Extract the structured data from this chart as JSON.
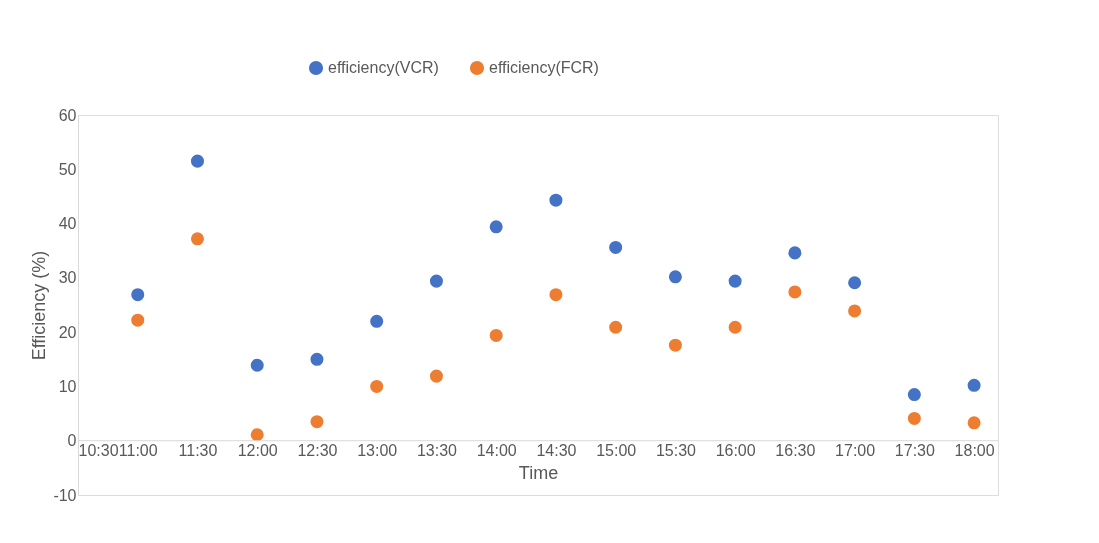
{
  "chart_data": {
    "type": "scatter",
    "xlabel": "Time",
    "ylabel": "Efficiency (%)",
    "x": [
      11,
      11.5,
      12,
      12.5,
      13,
      13.5,
      14,
      14.5,
      15,
      15.5,
      16,
      16.5,
      17,
      17.5,
      18
    ],
    "series": [
      {
        "name": "efficiency(VCR)",
        "color": "#4472c4",
        "values": [
          26.9,
          51.5,
          13.9,
          15.0,
          22.0,
          29.4,
          39.4,
          44.3,
          35.6,
          30.2,
          29.4,
          34.6,
          29.1,
          8.5,
          10.2
        ]
      },
      {
        "name": "efficiency(FCR)",
        "color": "#ed7d31",
        "values": [
          22.2,
          37.2,
          1.1,
          3.5,
          10.0,
          11.9,
          19.4,
          26.9,
          20.9,
          17.6,
          20.9,
          27.4,
          23.9,
          4.1,
          3.3
        ]
      }
    ],
    "xlim": [
      10.5,
      18.2
    ],
    "xticks": [
      {
        "value": 10.5,
        "label": "10:30"
      },
      {
        "value": 11,
        "label": "11:00"
      },
      {
        "value": 11.5,
        "label": "11:30"
      },
      {
        "value": 12,
        "label": "12:00"
      },
      {
        "value": 12.5,
        "label": "12:30"
      },
      {
        "value": 13,
        "label": "13:00"
      },
      {
        "value": 13.5,
        "label": "13:30"
      },
      {
        "value": 14,
        "label": "14:00"
      },
      {
        "value": 14.5,
        "label": "14:30"
      },
      {
        "value": 15,
        "label": "15:00"
      },
      {
        "value": 15.5,
        "label": "15:30"
      },
      {
        "value": 16,
        "label": "16:00"
      },
      {
        "value": 16.5,
        "label": "16:30"
      },
      {
        "value": 17,
        "label": "17:00"
      },
      {
        "value": 17.5,
        "label": "17:30"
      },
      {
        "value": 18,
        "label": "18:00"
      }
    ],
    "ylim": [
      -10,
      60
    ],
    "yticks": [
      -10,
      0,
      10,
      20,
      30,
      40,
      50,
      60
    ],
    "grid": false,
    "legend": "top",
    "marker": "circle"
  }
}
